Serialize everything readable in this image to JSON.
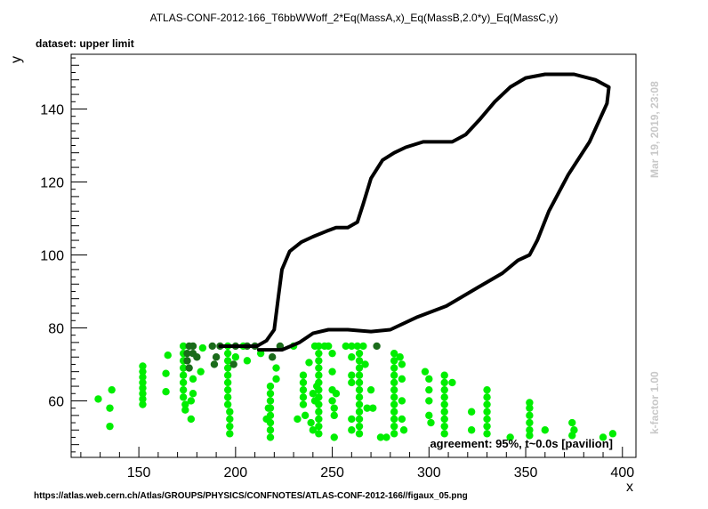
{
  "chart_data": {
    "type": "scatter",
    "title": "ATLAS-CONF-2012-166_T6bbWWoff_2*Eq(MassA,x)_Eq(MassB,2.0*y)_Eq(MassC,y)",
    "dataset_label": "dataset: upper limit",
    "xlabel": "x",
    "ylabel": "y",
    "xlim": [
      115,
      407
    ],
    "ylim": [
      44.5,
      155
    ],
    "x_ticks": [
      150,
      200,
      250,
      300,
      350,
      400
    ],
    "y_ticks": [
      60,
      80,
      100,
      120,
      140
    ],
    "grid": false,
    "side_label_top": "Mar 19, 2019, 23:08",
    "side_label_bottom": "k-factor 1.00",
    "agreement_text": "agreement: 95%, t~0.0s [pavilion]",
    "footer_url": "https://atlas.web.cern.ch/Atlas/GROUPS/PHYSICS/CONFNOTES/ATLAS-CONF-2012-166//figaux_05.png",
    "colors": {
      "bright_green": "#00ee00",
      "dark_green": "#1a6b1a",
      "contour": "#000000"
    },
    "series": [
      {
        "kind": "points",
        "color": "bright_green",
        "points": [
          [
            129,
            60.5
          ],
          [
            135,
            53
          ],
          [
            135,
            58
          ],
          [
            136,
            63
          ],
          [
            152,
            59
          ],
          [
            152,
            60.5
          ],
          [
            152,
            62
          ],
          [
            152,
            63.5
          ],
          [
            152,
            65
          ],
          [
            152,
            66.5
          ],
          [
            152,
            68
          ],
          [
            152,
            69.5
          ],
          [
            164,
            62.5
          ],
          [
            164,
            67.5
          ],
          [
            165,
            72.5
          ],
          [
            173,
            75
          ],
          [
            173,
            73
          ],
          [
            173,
            71
          ],
          [
            173,
            69
          ],
          [
            173,
            67
          ],
          [
            173,
            65
          ],
          [
            173,
            63
          ],
          [
            173,
            61
          ],
          [
            174,
            59
          ],
          [
            174,
            57.5
          ],
          [
            177,
            55
          ],
          [
            177,
            60
          ],
          [
            178,
            62
          ],
          [
            178,
            66
          ],
          [
            182,
            68
          ],
          [
            183,
            74.5
          ],
          [
            196,
            75
          ],
          [
            196,
            73
          ],
          [
            196,
            71
          ],
          [
            196,
            69
          ],
          [
            196,
            67
          ],
          [
            196,
            65
          ],
          [
            196,
            63
          ],
          [
            196,
            61
          ],
          [
            196,
            59
          ],
          [
            197,
            57
          ],
          [
            197,
            55
          ],
          [
            197,
            53
          ],
          [
            197,
            51
          ],
          [
            200,
            72
          ],
          [
            204,
            75
          ],
          [
            206,
            71
          ],
          [
            213,
            73
          ],
          [
            216,
            55
          ],
          [
            217,
            58
          ],
          [
            218,
            64
          ],
          [
            218,
            62
          ],
          [
            218,
            60
          ],
          [
            218,
            58
          ],
          [
            218,
            56
          ],
          [
            218,
            54
          ],
          [
            218,
            52
          ],
          [
            218,
            50
          ],
          [
            221,
            66
          ],
          [
            221,
            69
          ],
          [
            230,
            75
          ],
          [
            238,
            70.5
          ],
          [
            232,
            55
          ],
          [
            235,
            67
          ],
          [
            235,
            65
          ],
          [
            235,
            63
          ],
          [
            235,
            61
          ],
          [
            235,
            59
          ],
          [
            236,
            56
          ],
          [
            239,
            54
          ],
          [
            240,
            52
          ],
          [
            240,
            62
          ],
          [
            242,
            64
          ],
          [
            241,
            75
          ],
          [
            241,
            60
          ],
          [
            243,
            75
          ],
          [
            243,
            73
          ],
          [
            243,
            71
          ],
          [
            243,
            69
          ],
          [
            243,
            67
          ],
          [
            243,
            65
          ],
          [
            243,
            63
          ],
          [
            243,
            61
          ],
          [
            243,
            59
          ],
          [
            243,
            57
          ],
          [
            243,
            55
          ],
          [
            243,
            53
          ],
          [
            243,
            51
          ],
          [
            246,
            75
          ],
          [
            248,
            75
          ],
          [
            250,
            73
          ],
          [
            250,
            68
          ],
          [
            250,
            63
          ],
          [
            250,
            60
          ],
          [
            251,
            58
          ],
          [
            251,
            56
          ],
          [
            252,
            62
          ],
          [
            251,
            50
          ],
          [
            257,
            75
          ],
          [
            260,
            75
          ],
          [
            260,
            72
          ],
          [
            260,
            67
          ],
          [
            260,
            65
          ],
          [
            260,
            55
          ],
          [
            260,
            52
          ],
          [
            263,
            75
          ],
          [
            264,
            73
          ],
          [
            264,
            71
          ],
          [
            264,
            69
          ],
          [
            264,
            67
          ],
          [
            264,
            65
          ],
          [
            264,
            63
          ],
          [
            264,
            61
          ],
          [
            264,
            59
          ],
          [
            264,
            57
          ],
          [
            264,
            55
          ],
          [
            264,
            53
          ],
          [
            264,
            51
          ],
          [
            266,
            75
          ],
          [
            267,
            70
          ],
          [
            270,
            63
          ],
          [
            271,
            58
          ],
          [
            268,
            58
          ],
          [
            275,
            50
          ],
          [
            278,
            50
          ],
          [
            282,
            73
          ],
          [
            282,
            71
          ],
          [
            282,
            69
          ],
          [
            282,
            67
          ],
          [
            282,
            65
          ],
          [
            282,
            63
          ],
          [
            282,
            61
          ],
          [
            282,
            59
          ],
          [
            282,
            57
          ],
          [
            282,
            55
          ],
          [
            282,
            53
          ],
          [
            282,
            51
          ],
          [
            285,
            72
          ],
          [
            286,
            70
          ],
          [
            286,
            66
          ],
          [
            286,
            60
          ],
          [
            286,
            55
          ],
          [
            287,
            52
          ],
          [
            298,
            68
          ],
          [
            300,
            66
          ],
          [
            300,
            63
          ],
          [
            300,
            60
          ],
          [
            300,
            56
          ],
          [
            301,
            54
          ],
          [
            308,
            67
          ],
          [
            308,
            65
          ],
          [
            308,
            63
          ],
          [
            308,
            61
          ],
          [
            308,
            59
          ],
          [
            308,
            57
          ],
          [
            308,
            55
          ],
          [
            308,
            53
          ],
          [
            308,
            51
          ],
          [
            312,
            65
          ],
          [
            322,
            57
          ],
          [
            322,
            52
          ],
          [
            330,
            63
          ],
          [
            330,
            61
          ],
          [
            330,
            59
          ],
          [
            330,
            57
          ],
          [
            330,
            55
          ],
          [
            330,
            53
          ],
          [
            330,
            51
          ],
          [
            342,
            50
          ],
          [
            352,
            59.5
          ],
          [
            352,
            58
          ],
          [
            352,
            56
          ],
          [
            352,
            54
          ],
          [
            352,
            52
          ],
          [
            352,
            50.5
          ],
          [
            360,
            52
          ],
          [
            374,
            54
          ],
          [
            375,
            52
          ],
          [
            374,
            50.5
          ],
          [
            390,
            50
          ],
          [
            395,
            51
          ]
        ]
      },
      {
        "kind": "points",
        "color": "dark_green",
        "points": [
          [
            176,
            75
          ],
          [
            175,
            73
          ],
          [
            175,
            71
          ],
          [
            176,
            69
          ],
          [
            178,
            73
          ],
          [
            178,
            75
          ],
          [
            180,
            72
          ],
          [
            188,
            75
          ],
          [
            190,
            72
          ],
          [
            192,
            75
          ],
          [
            189,
            70
          ],
          [
            199,
            70
          ],
          [
            200,
            75
          ],
          [
            206,
            75
          ],
          [
            210,
            75
          ],
          [
            219,
            72
          ],
          [
            223,
            75
          ],
          [
            273,
            75
          ]
        ]
      },
      {
        "kind": "line",
        "color": "contour",
        "points": [
          [
            192,
            75
          ],
          [
            211,
            75
          ],
          [
            216,
            76.5
          ],
          [
            220,
            79.5
          ],
          [
            222,
            88
          ],
          [
            224,
            96
          ],
          [
            228,
            101
          ],
          [
            234,
            103.5
          ],
          [
            240,
            105
          ],
          [
            247,
            106.5
          ],
          [
            252,
            107.5
          ],
          [
            258,
            107.5
          ],
          [
            263,
            109
          ],
          [
            266,
            114
          ],
          [
            270,
            121
          ],
          [
            276,
            126
          ],
          [
            282,
            128
          ],
          [
            288,
            129.5
          ],
          [
            297,
            131
          ],
          [
            304,
            131
          ],
          [
            312,
            131
          ],
          [
            319,
            133
          ],
          [
            326,
            137
          ],
          [
            334,
            142
          ],
          [
            342,
            146
          ],
          [
            350,
            148.5
          ],
          [
            360,
            149.5
          ],
          [
            375,
            149.5
          ],
          [
            386,
            148
          ],
          [
            393,
            146
          ],
          [
            392,
            141.5
          ],
          [
            383,
            131
          ],
          [
            372,
            122
          ],
          [
            362,
            112
          ],
          [
            356,
            104
          ],
          [
            352,
            100
          ],
          [
            346,
            98.5
          ],
          [
            338,
            95
          ],
          [
            325,
            91
          ],
          [
            309,
            86
          ],
          [
            294,
            83
          ],
          [
            280,
            79.5
          ],
          [
            270,
            79
          ],
          [
            258,
            79.5
          ],
          [
            248,
            79.5
          ],
          [
            240,
            78.5
          ],
          [
            233,
            76
          ],
          [
            224,
            74
          ],
          [
            212,
            74
          ]
        ]
      }
    ]
  }
}
